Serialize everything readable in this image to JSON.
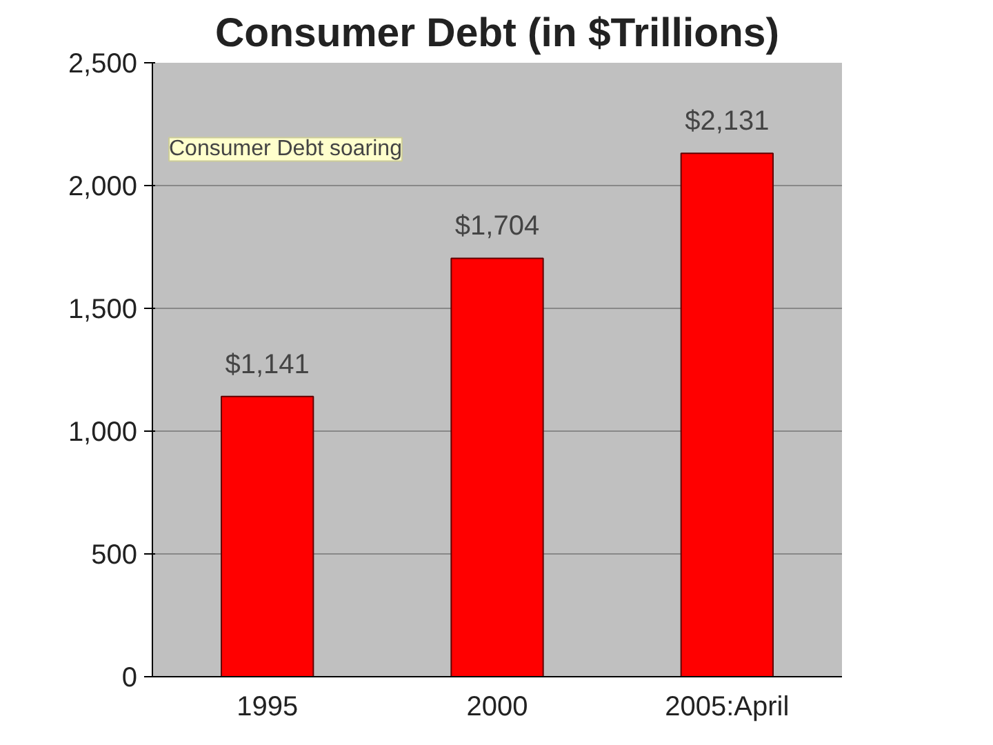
{
  "chart_data": {
    "type": "bar",
    "title": "Consumer Debt (in $Trillions)",
    "categories": [
      "1995",
      "2000",
      "2005:April"
    ],
    "values": [
      1141,
      1704,
      2131
    ],
    "value_labels": [
      "$1,141",
      "$1,704",
      "$2,131"
    ],
    "color": "#ff0000",
    "ylim": [
      0,
      2500
    ],
    "yticks": [
      {
        "value": 0,
        "label": "0"
      },
      {
        "value": 500,
        "label": "500"
      },
      {
        "value": 1000,
        "label": "1,000"
      },
      {
        "value": 1500,
        "label": "1,500"
      },
      {
        "value": 2000,
        "label": "2,000"
      },
      {
        "value": 2500,
        "label": "2,500"
      }
    ],
    "grid": "y",
    "annotations": [
      "Consumer Debt soaring"
    ]
  }
}
